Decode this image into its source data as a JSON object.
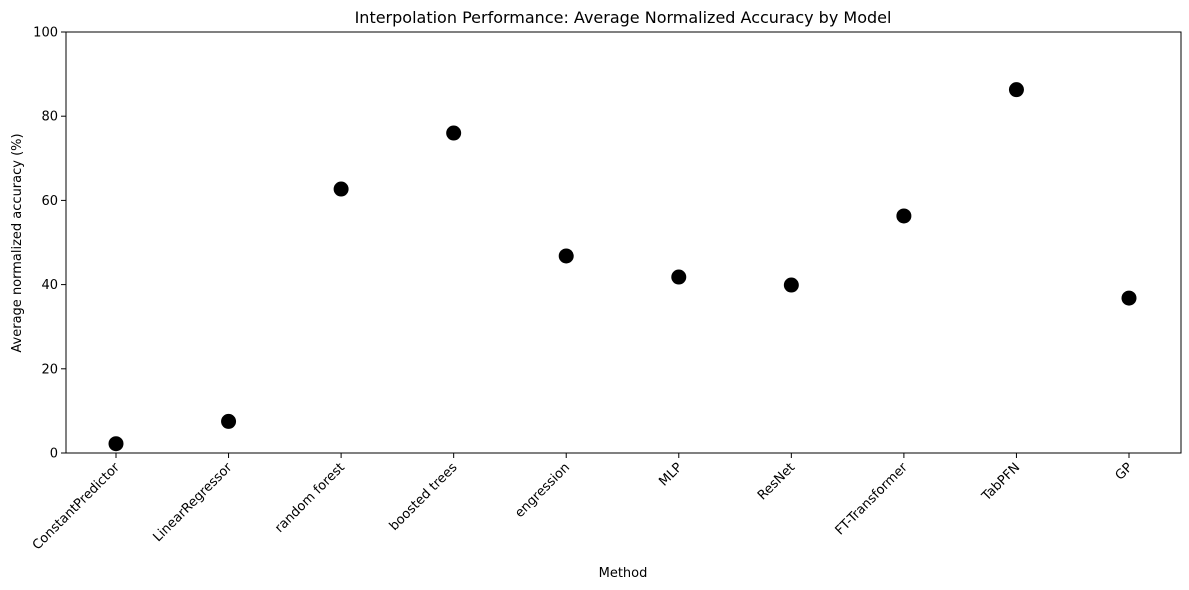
{
  "chart_data": {
    "type": "scatter",
    "title": "Interpolation Performance: Average Normalized Accuracy by Model",
    "xlabel": "Method",
    "ylabel": "Average normalized accuracy (%)",
    "categories": [
      "ConstantPredictor",
      "LinearRegressor",
      "random forest",
      "boosted trees",
      "engression",
      "MLP",
      "ResNet",
      "FT-Transformer",
      "TabPFN",
      "GP"
    ],
    "values": [
      2.2,
      7.5,
      62.7,
      76.0,
      46.8,
      41.8,
      39.9,
      56.3,
      86.3,
      36.8
    ],
    "ylim": [
      0,
      100
    ],
    "yticks": [
      "0",
      "20",
      "40",
      "60",
      "80",
      "100"
    ],
    "grid": false,
    "marker_color": "#000000"
  }
}
